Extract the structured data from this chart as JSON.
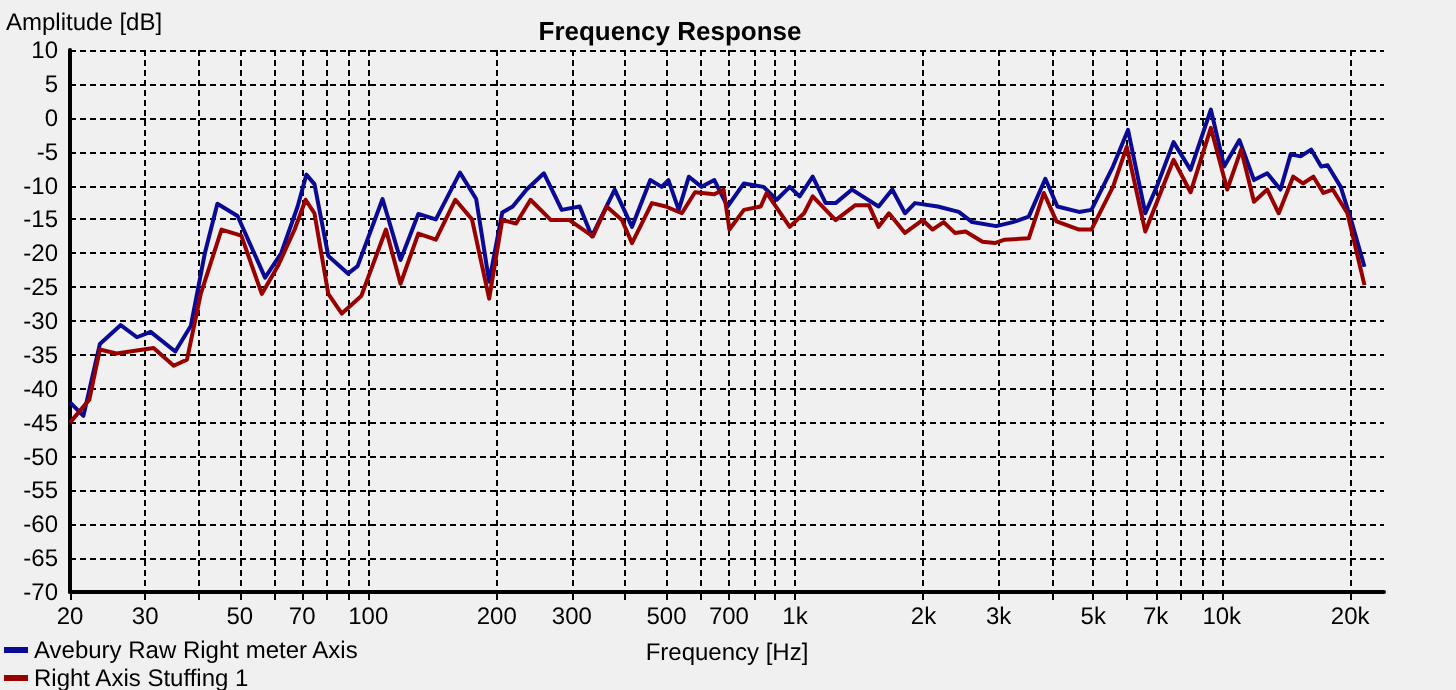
{
  "chart_data": {
    "type": "line",
    "title": "Frequency Response",
    "xlabel": "Frequency [Hz]",
    "ylabel": "Amplitude [dB]",
    "log": "x",
    "grid": true,
    "legend": "bottom left",
    "marker": "none",
    "line_style": "solid",
    "xlim": [
      20,
      24000
    ],
    "ylim": [
      -70,
      10
    ],
    "xticks": [
      20,
      30,
      {
        "value": 40,
        "label": null
      },
      50,
      {
        "value": 60,
        "label": null
      },
      70,
      {
        "value": 80,
        "label": null
      },
      {
        "value": 90,
        "label": null
      },
      100,
      200,
      300,
      {
        "value": 400,
        "label": null
      },
      500,
      {
        "value": 600,
        "label": null
      },
      700,
      {
        "value": 800,
        "label": null
      },
      {
        "value": 900,
        "label": null
      },
      {
        "value": 1000,
        "label": "1k"
      },
      {
        "value": 2000,
        "label": "2k"
      },
      {
        "value": 3000,
        "label": "3k"
      },
      {
        "value": 4000,
        "label": null
      },
      {
        "value": 5000,
        "label": "5k"
      },
      {
        "value": 6000,
        "label": null
      },
      {
        "value": 7000,
        "label": "7k"
      },
      {
        "value": 8000,
        "label": null
      },
      {
        "value": 9000,
        "label": null
      },
      {
        "value": 10000,
        "label": "10k"
      },
      {
        "value": 20000,
        "label": "20k"
      }
    ],
    "yticks": [
      -70,
      -65,
      -60,
      -55,
      -50,
      -45,
      -40,
      -35,
      -30,
      -25,
      -20,
      -15,
      -10,
      -5,
      0,
      5,
      10
    ],
    "series": [
      {
        "name": "Avebury Raw Right meter Axis",
        "color": "#0a0a96",
        "x": [
          20,
          21.5,
          23.5,
          26.3,
          28.7,
          30.9,
          35.3,
          38.4,
          41.4,
          44.3,
          49.4,
          57.3,
          62.5,
          68.3,
          71.6,
          74.8,
          80.6,
          89.6,
          94.4,
          108,
          119,
          131,
          144,
          164,
          179,
          192,
          206,
          218,
          235,
          258,
          284,
          313,
          334,
          378,
          415,
          458,
          487,
          505,
          534,
          564,
          604,
          647,
          695,
          759,
          844,
          906,
          972,
          1025,
          1100,
          1180,
          1245,
          1360,
          1570,
          1690,
          1810,
          1910,
          2160,
          2420,
          2600,
          2960,
          3240,
          3530,
          3860,
          4120,
          4630,
          4950,
          5560,
          6030,
          6620,
          7040,
          7710,
          8450,
          9430,
          10130,
          11000,
          11900,
          12780,
          13730,
          14500,
          15300,
          16200,
          17100,
          17700,
          19000,
          20100,
          21600
        ],
        "values": [
          -42,
          -44,
          -33.4,
          -30.6,
          -32.4,
          -31.6,
          -34.5,
          -30.7,
          -20,
          -12.7,
          -14.5,
          -23.6,
          -20,
          -13.1,
          -8.4,
          -9.8,
          -20.4,
          -23,
          -21.9,
          -12,
          -21,
          -14.2,
          -15,
          -8.1,
          -12,
          -24.2,
          -14,
          -13.1,
          -10.6,
          -8.2,
          -13.6,
          -13.1,
          -17.5,
          -10.6,
          -16.1,
          -9.2,
          -10.2,
          -9.2,
          -13.6,
          -8.7,
          -10.2,
          -9.2,
          -13.1,
          -9.7,
          -10.2,
          -12.1,
          -10.2,
          -11.6,
          -8.7,
          -12.6,
          -12.6,
          -10.6,
          -13.1,
          -10.6,
          -14.1,
          -12.6,
          -13.1,
          -13.9,
          -15.4,
          -16,
          -15.4,
          -14.6,
          -9,
          -13.1,
          -13.9,
          -13.6,
          -7.2,
          -1.8,
          -14.1,
          -10.2,
          -3.6,
          -7.7,
          1.2,
          -7.2,
          -3.3,
          -9.2,
          -8.2,
          -10.6,
          -5.4,
          -5.7,
          -4.7,
          -7.2,
          -7,
          -10.2,
          -15.1,
          -22
        ]
      },
      {
        "name": "Right Axis Stuffing 1",
        "color": "#990000",
        "x": [
          20,
          22.2,
          23.5,
          25.7,
          31.4,
          35,
          37.6,
          40.5,
          45.3,
          50.4,
          56.3,
          61.4,
          67.2,
          71.3,
          74.8,
          80.6,
          86.7,
          96.3,
          110,
          119,
          131,
          144,
          160,
          175,
          192,
          206,
          222,
          240,
          268,
          296,
          336,
          362,
          393,
          415,
          462,
          498,
          543,
          583,
          647,
          680,
          702,
          759,
          831,
          858,
          972,
          1050,
          1100,
          1245,
          1385,
          1490,
          1570,
          1660,
          1810,
          1990,
          2100,
          2230,
          2370,
          2510,
          2750,
          2940,
          3100,
          3530,
          3830,
          4100,
          4630,
          4950,
          5560,
          5990,
          6620,
          7710,
          8450,
          9430,
          10300,
          11100,
          11900,
          12780,
          13600,
          14700,
          15500,
          16400,
          17300,
          18200,
          19700,
          21600
        ],
        "values": [
          -45,
          -41.6,
          -34.2,
          -34.8,
          -34,
          -36.6,
          -35.7,
          -26,
          -16.5,
          -17.4,
          -26,
          -21.9,
          -16.5,
          -12.1,
          -14.1,
          -26,
          -28.9,
          -26.3,
          -16.5,
          -24.5,
          -17.1,
          -18,
          -12.1,
          -15,
          -26.7,
          -15.1,
          -15.6,
          -12.1,
          -15.1,
          -15.1,
          -17.5,
          -13.1,
          -15.1,
          -18.5,
          -12.6,
          -13.1,
          -14.1,
          -11,
          -11.3,
          -10.6,
          -16.5,
          -13.6,
          -13.1,
          -11.1,
          -16.1,
          -14.1,
          -11.6,
          -15.1,
          -12.9,
          -12.9,
          -16.1,
          -14.1,
          -17,
          -15.1,
          -16.5,
          -15.4,
          -17,
          -16.8,
          -18.3,
          -18.5,
          -18,
          -17.8,
          -11.1,
          -15.3,
          -16.5,
          -16.5,
          -10.2,
          -4.3,
          -16.8,
          -6.2,
          -11,
          -1.5,
          -10.6,
          -4.7,
          -12.4,
          -10.6,
          -14.1,
          -8.7,
          -9.7,
          -8.7,
          -11.1,
          -10.6,
          -14.1,
          -24.7
        ]
      }
    ]
  }
}
